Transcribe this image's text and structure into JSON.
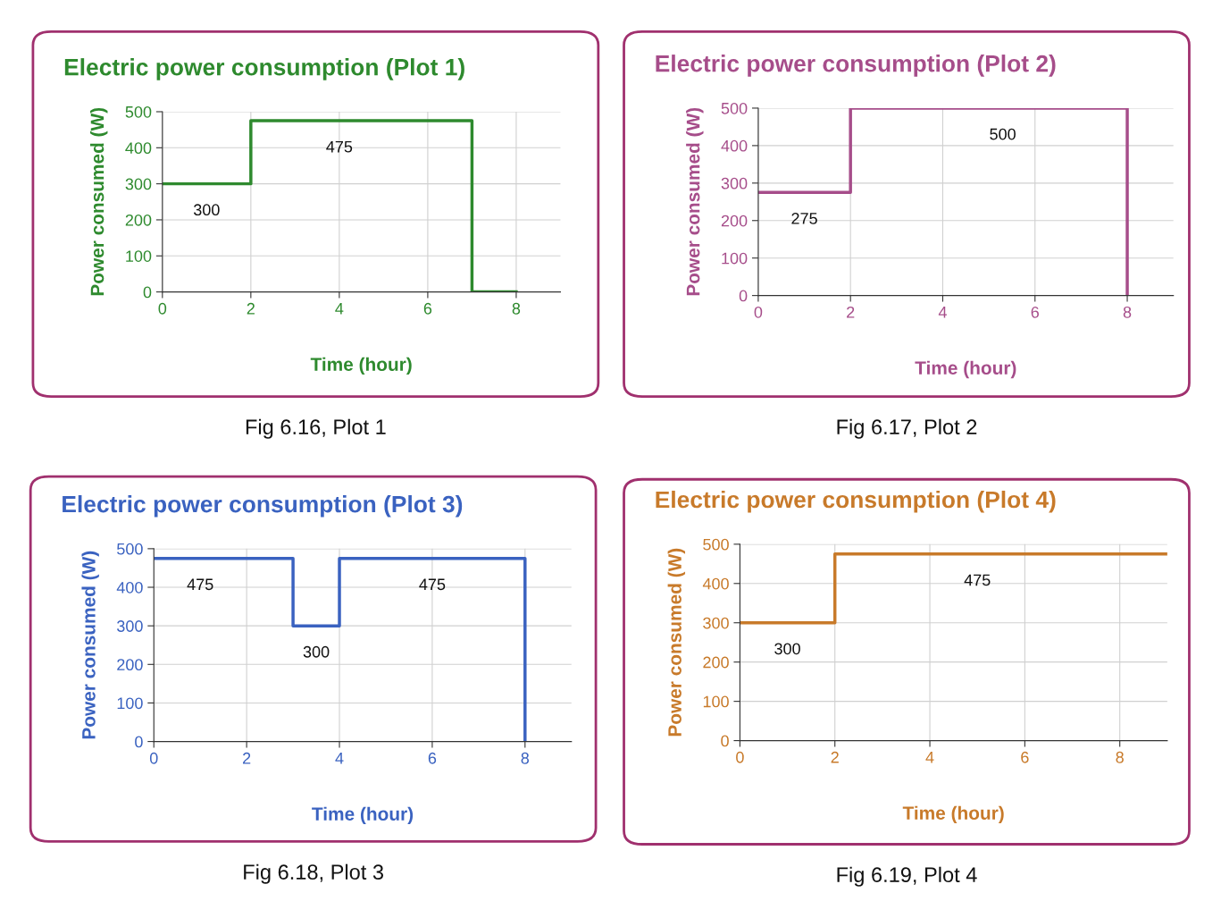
{
  "chart_data": [
    {
      "type": "step",
      "title": "Electric power consumption (Plot 1)",
      "xlabel": "Time (hour)",
      "ylabel": "Power consumed (W)",
      "x": [
        0,
        2,
        7,
        8
      ],
      "series": [
        {
          "color": "#2e8a2e",
          "values": [
            300,
            475,
            0,
            0
          ]
        }
      ],
      "xlim": [
        0,
        9
      ],
      "ylim": [
        0,
        500
      ],
      "xticks": [
        0,
        2,
        4,
        6,
        8
      ],
      "yticks": [
        0,
        100,
        200,
        300,
        400,
        500
      ],
      "grid": true,
      "annotations": [
        {
          "text": "300",
          "x": 1,
          "y": 300
        },
        {
          "text": "475",
          "x": 4,
          "y": 475
        },
        "Fig 6.16, Plot 1"
      ]
    },
    {
      "type": "step",
      "title": "Electric power consumption (Plot 2)",
      "xlabel": "Time (hour)",
      "ylabel": "Power consumed (W)",
      "x": [
        0,
        2,
        8
      ],
      "series": [
        {
          "color": "#a64d8a",
          "values": [
            275,
            500,
            0
          ]
        }
      ],
      "xlim": [
        0,
        9
      ],
      "ylim": [
        0,
        500
      ],
      "xticks": [
        0,
        2,
        4,
        6,
        8
      ],
      "yticks": [
        0,
        100,
        200,
        300,
        400,
        500
      ],
      "grid": true,
      "annotations": [
        {
          "text": "275",
          "x": 1,
          "y": 275
        },
        {
          "text": "500",
          "x": 5.3,
          "y": 500
        },
        "Fig 6.17, Plot 2"
      ]
    },
    {
      "type": "step",
      "title": "Electric power consumption (Plot 3)",
      "xlabel": "Time (hour)",
      "ylabel": "Power consumed (W)",
      "x": [
        0,
        3,
        4,
        8
      ],
      "series": [
        {
          "color": "#3a62c0",
          "values": [
            475,
            300,
            475,
            0
          ]
        }
      ],
      "xlim": [
        0,
        9
      ],
      "ylim": [
        0,
        500
      ],
      "xticks": [
        0,
        2,
        4,
        6,
        8
      ],
      "yticks": [
        0,
        100,
        200,
        300,
        400,
        500
      ],
      "grid": true,
      "annotations": [
        {
          "text": "475",
          "x": 1,
          "y": 475
        },
        {
          "text": "300",
          "x": 3.5,
          "y": 300
        },
        {
          "text": "475",
          "x": 6,
          "y": 475
        },
        "Fig 6.18, Plot 3"
      ]
    },
    {
      "type": "step",
      "title": "Electric power consumption (Plot 4)",
      "xlabel": "Time (hour)",
      "ylabel": "Power consumed (W)",
      "x": [
        0,
        2,
        9
      ],
      "series": [
        {
          "color": "#c87a2a",
          "values": [
            300,
            475,
            475
          ]
        }
      ],
      "xlim": [
        0,
        9
      ],
      "ylim": [
        0,
        500
      ],
      "xticks": [
        0,
        2,
        4,
        6,
        8
      ],
      "yticks": [
        0,
        100,
        200,
        300,
        400,
        500
      ],
      "grid": true,
      "annotations": [
        {
          "text": "300",
          "x": 1,
          "y": 300
        },
        {
          "text": "475",
          "x": 5,
          "y": 475
        },
        "Fig 6.19, Plot 4"
      ]
    }
  ]
}
